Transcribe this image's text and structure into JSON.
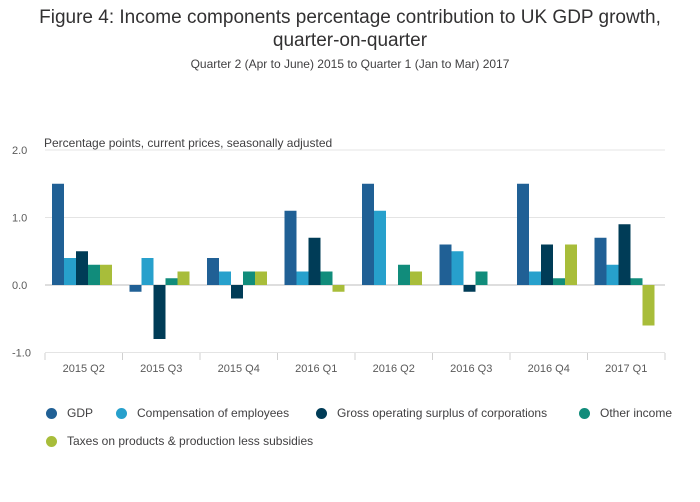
{
  "header": {
    "title_line1": "Figure 4: Income components percentage contribution to UK GDP growth,",
    "title_line2": "quarter-on-quarter",
    "subtitle": "Quarter 2 (Apr to June) 2015 to Quarter 1 (Jan to Mar) 2017"
  },
  "chart_data": {
    "type": "bar",
    "ylabel": "Percentage points, current prices, seasonally adjusted",
    "xlabel": "",
    "ylim": [
      -1.0,
      2.0
    ],
    "yticks": [
      "2.0",
      "1.0",
      "0.0",
      "-1.0"
    ],
    "ytick_values": [
      2.0,
      1.0,
      0.0,
      -1.0
    ],
    "grid": true,
    "legend_position": "bottom",
    "categories": [
      "2015 Q2",
      "2015 Q3",
      "2015 Q4",
      "2016 Q1",
      "2016 Q2",
      "2016 Q3",
      "2016 Q4",
      "2017 Q1"
    ],
    "series": [
      {
        "name": "GDP",
        "color": "#206095",
        "values": [
          1.5,
          -0.1,
          0.4,
          1.1,
          1.5,
          0.6,
          1.5,
          0.7
        ]
      },
      {
        "name": "Compensation of employees",
        "color": "#27a0cc",
        "values": [
          0.4,
          0.4,
          0.2,
          0.2,
          1.1,
          0.5,
          0.2,
          0.3
        ]
      },
      {
        "name": "Gross operating surplus of corporations",
        "color": "#003c57",
        "values": [
          0.5,
          -0.8,
          -0.2,
          0.7,
          0.0,
          -0.1,
          0.6,
          0.9
        ]
      },
      {
        "name": "Other income",
        "color": "#118c7b",
        "values": [
          0.3,
          0.1,
          0.2,
          0.2,
          0.3,
          0.2,
          0.1,
          0.1
        ]
      },
      {
        "name": "Taxes on products & production less subsidies",
        "color": "#a8bd3a",
        "values": [
          0.3,
          0.2,
          0.2,
          -0.1,
          0.2,
          0.0,
          0.6,
          -0.6
        ]
      }
    ]
  }
}
